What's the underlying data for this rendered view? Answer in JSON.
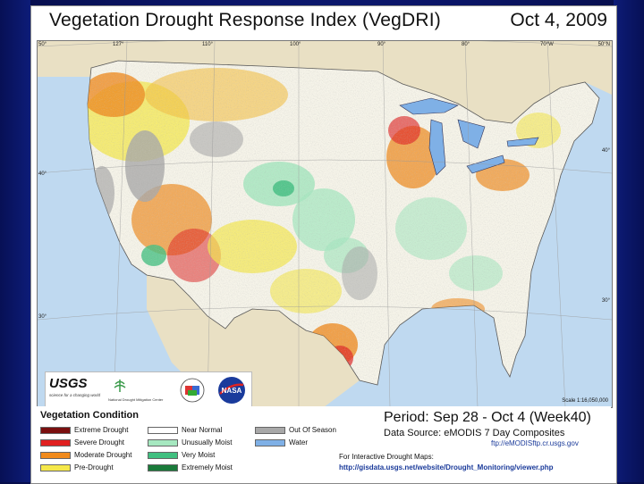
{
  "title": "Vegetation Drought Response Index (VegDRI)",
  "date": "Oct 4, 2009",
  "map": {
    "longitude_labels": [
      "127°",
      "110°",
      "100°",
      "90°",
      "80°",
      "70°W"
    ],
    "latitude_labels": [
      "50°",
      "40°",
      "30°"
    ],
    "latitude_labels_right": [
      "50°N",
      "40°",
      "30°"
    ],
    "scale": "Scale 1:16,050,000"
  },
  "logos": {
    "usgs": "USGS",
    "usgs_tagline": "science for a changing world",
    "ndmc": "National Drought Mitigation Center"
  },
  "legend": {
    "heading": "Vegetation Condition",
    "items": [
      {
        "label": "Extreme Drought",
        "color": "#7a1010"
      },
      {
        "label": "Severe Drought",
        "color": "#e02020"
      },
      {
        "label": "Moderate Drought",
        "color": "#f08a1c"
      },
      {
        "label": "Pre-Drought",
        "color": "#f5e84a"
      },
      {
        "label": "Near Normal",
        "color": "#ffffff"
      },
      {
        "label": "Unusually Moist",
        "color": "#a6e8c0"
      },
      {
        "label": "Very Moist",
        "color": "#40c080"
      },
      {
        "label": "Extremely Moist",
        "color": "#1a7a3a"
      },
      {
        "label": "Out Of Season",
        "color": "#a8a8a8"
      },
      {
        "label": "Water",
        "color": "#7fb0e6"
      }
    ]
  },
  "period": "Period:  Sep 28 - Oct 4 (Week40)",
  "data_source": "Data Source:  eMODIS 7 Day Composites",
  "url_ftp": "ftp://eMODISftp.cr.usgs.gov",
  "interactive_label": "For Interactive Drought Maps:",
  "url_viewer": "http://gisdata.usgs.net/website/Drought_Monitoring/viewer.php"
}
